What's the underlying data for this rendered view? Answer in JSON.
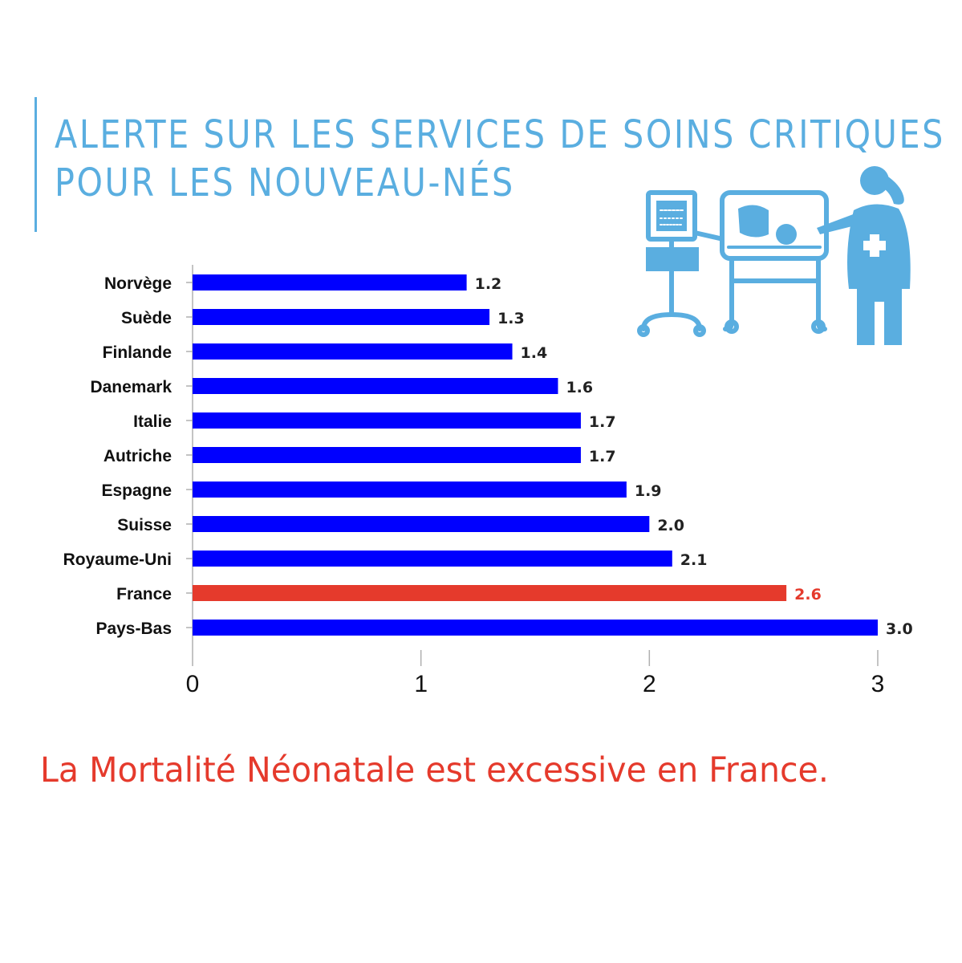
{
  "title_lines": [
    "ALERTE SUR LES SERVICES DE SOINS CRITIQUES",
    "POUR LES NOUVEAU-NÉS"
  ],
  "caption": "La Mortalité Néonatale est excessive en France.",
  "colors": {
    "title": "#5aaee0",
    "bar": "#0000ff",
    "highlight_bar": "#e53a2c",
    "caption": "#e53a2c",
    "illustration": "#5aaee0"
  },
  "illustration": {
    "icon": "neonatal-intensive-care-icon"
  },
  "chart_data": {
    "type": "bar",
    "orientation": "horizontal",
    "title": "",
    "xlabel": "",
    "ylabel": "",
    "categories": [
      "Norvège",
      "Suède",
      "Finlande",
      "Danemark",
      "Italie",
      "Autriche",
      "Espagne",
      "Suisse",
      "Royaume-Uni",
      "France",
      "Pays-Bas"
    ],
    "values": [
      1.2,
      1.3,
      1.4,
      1.6,
      1.7,
      1.7,
      1.9,
      2.0,
      2.1,
      2.6,
      3.0
    ],
    "value_labels": [
      "1.2",
      "1.3",
      "1.4",
      "1.6",
      "1.7",
      "1.7",
      "1.9",
      "2.0",
      "2.1",
      "2.6",
      "3.0"
    ],
    "highlight": "France",
    "xlim": [
      0,
      3
    ],
    "xticks": [
      0,
      1,
      2,
      3
    ],
    "xtick_labels": [
      "0",
      "1",
      "2",
      "3"
    ],
    "grid": false,
    "legend": "none"
  }
}
